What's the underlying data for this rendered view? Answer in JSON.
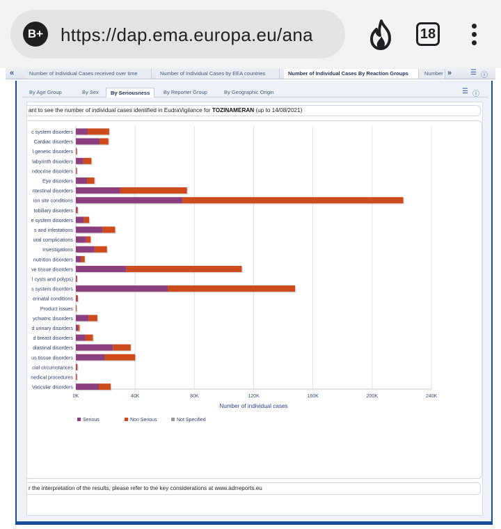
{
  "browser": {
    "badge": "B+",
    "url": "https://dap.ema.europa.eu/ana",
    "tab_count": "18"
  },
  "top_tabs": {
    "prev": "«",
    "next": "»",
    "items": [
      "Number of Individual Cases received over time",
      "Number of Individual Cases by EEA countries",
      "Number of Individual Cases By Reaction Groups",
      "Number"
    ],
    "active_index": 2,
    "icons": [
      "list-settings-icon",
      "help-icon"
    ]
  },
  "sub_tabs": {
    "items": [
      "By Age Group",
      "By Sex",
      "By Seriousness",
      "By Reporter Group",
      "By Geographic Origin"
    ],
    "active_index": 2
  },
  "info": {
    "text_before": "ant to see the number of individual cases identified in EudraVigilance for ",
    "product": "TOZINAMERAN",
    "text_after": " (up to 14/08/2021)"
  },
  "footer": {
    "text": "r the interpretation of the results, please refer to the key considerations at www.adrreports.eu"
  },
  "colors": {
    "serious": "#8c3f7e",
    "non_serious": "#cc4a1c",
    "not_specified": "#999999",
    "accent": "#1a4a9a"
  },
  "chart_data": {
    "type": "bar",
    "orientation": "horizontal",
    "stacked": true,
    "categories": [
      "c system disorders",
      "Cardiac disorders",
      "l genetic disorders",
      "labyrinth disorders",
      "ndocrine disorders",
      "Eye disorders",
      "ntestinal disorders",
      "ion site conditions",
      "tobiliary disorders",
      "e system disorders",
      "s and infestations",
      "ural complications",
      "Investigations",
      "nutrition disorders",
      "ve tissue disorders",
      "l cysts and polyps)",
      "s system disorders",
      "erinatal conditions",
      "Product issues",
      "ychiatric disorders",
      "d urinary disorders",
      "d breast disorders",
      "diastinal disorders",
      "us tissue disorders",
      "cial circumstances",
      "nedical procedures",
      "Vascular disorders"
    ],
    "series": [
      {
        "name": "Serious",
        "values": [
          8000,
          16000,
          300,
          5000,
          300,
          7500,
          30000,
          72000,
          800,
          5500,
          18000,
          7000,
          12500,
          3500,
          34000,
          500,
          62000,
          800,
          100,
          8500,
          1500,
          6500,
          25000,
          19500,
          600,
          300,
          15500
        ]
      },
      {
        "name": "Non Serious",
        "values": [
          14500,
          6000,
          100,
          5500,
          200,
          5000,
          45000,
          149000,
          500,
          3500,
          8500,
          3000,
          8500,
          2500,
          78000,
          300,
          86000,
          600,
          50,
          6000,
          1000,
          5000,
          12000,
          20500,
          500,
          200,
          8000
        ]
      },
      {
        "name": "Not Specified",
        "values": [
          0,
          0,
          0,
          0,
          0,
          0,
          0,
          0,
          0,
          0,
          0,
          0,
          0,
          0,
          0,
          0,
          0,
          0,
          0,
          0,
          0,
          0,
          0,
          0,
          0,
          0,
          0
        ]
      }
    ],
    "xlabel": "Number of individual cases",
    "xlim": [
      0,
      240000
    ],
    "xticks": [
      0,
      40000,
      80000,
      120000,
      160000,
      200000,
      240000
    ],
    "xtick_labels": [
      "0K",
      "40K",
      "80K",
      "120K",
      "160K",
      "200K",
      "240K"
    ],
    "grid": true,
    "legend": "bottom-left"
  }
}
